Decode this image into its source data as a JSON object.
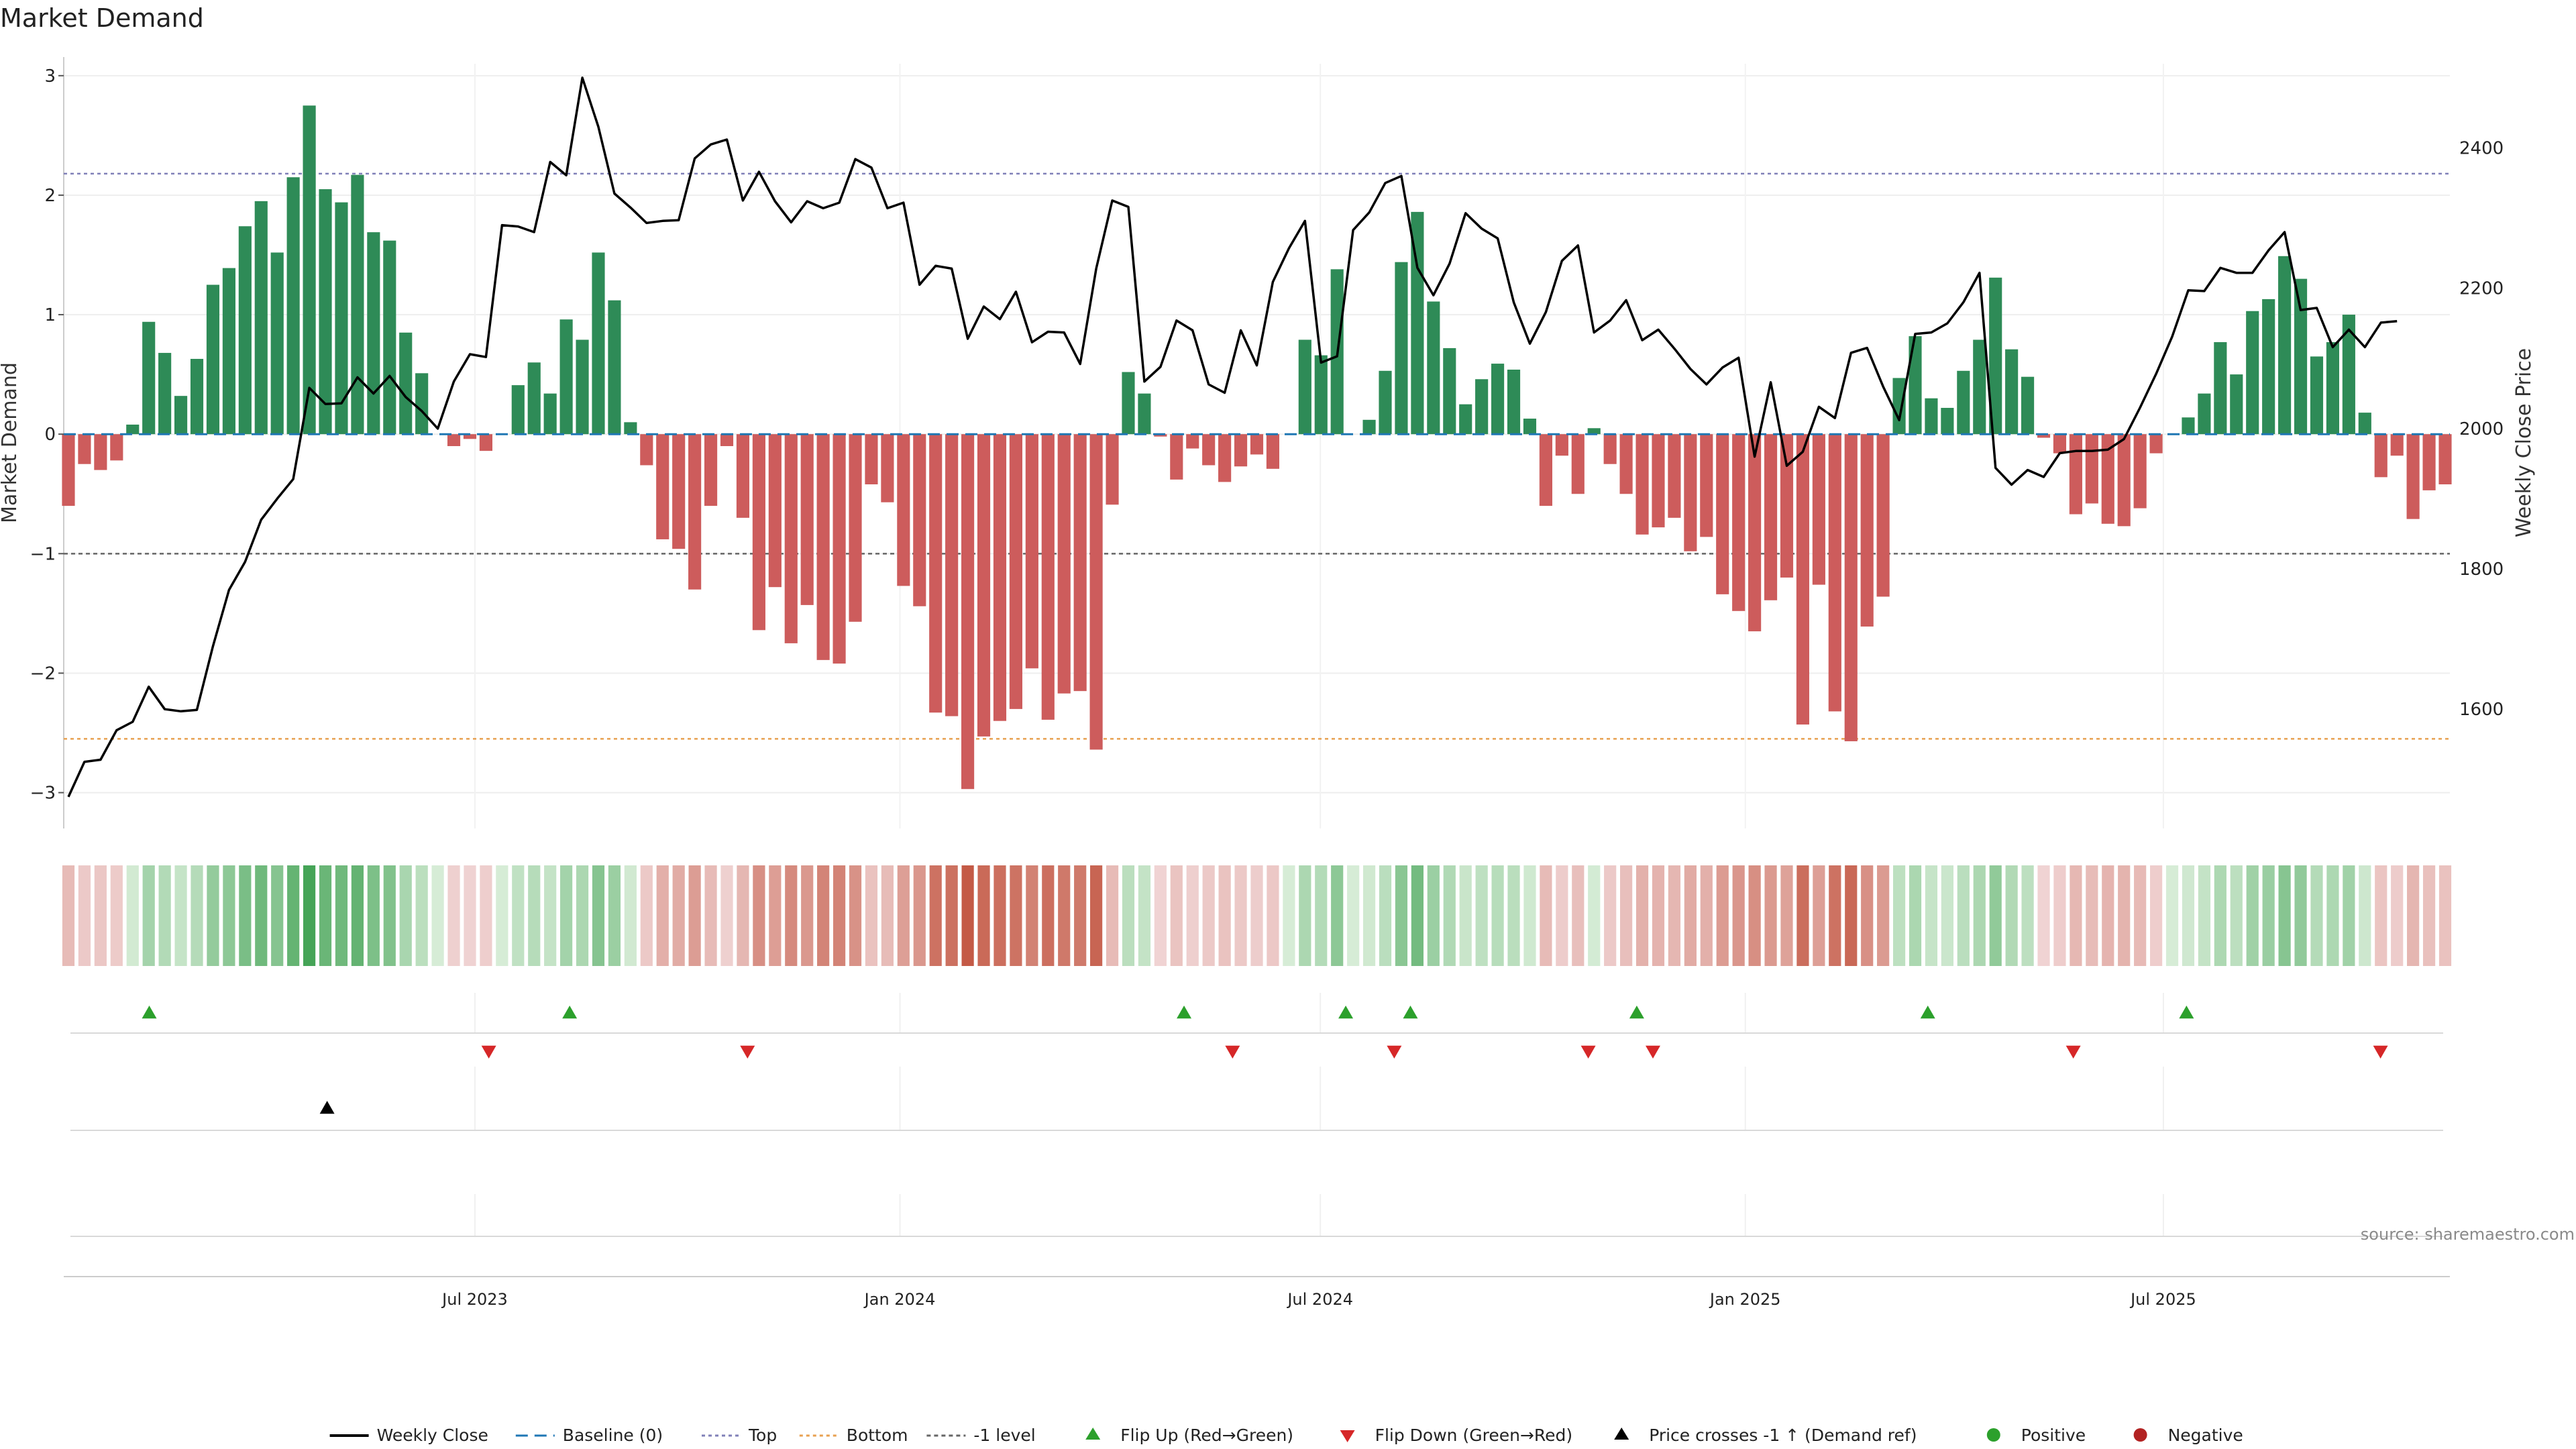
{
  "chart_data": {
    "type": "bar",
    "title": "Market Demand",
    "ylabel": "Market Demand",
    "y2label": "Weekly Close Price",
    "ylim": [
      -3.3,
      3.1
    ],
    "y_ticks": [
      3,
      2,
      1,
      0,
      -1,
      -2,
      -3
    ],
    "y_tick_labels": [
      "3",
      "2",
      "1",
      "0",
      "−1",
      "−2",
      "−3"
    ],
    "y2lim": [
      1430,
      2520
    ],
    "y2_ticks": [
      2400,
      2200,
      2000,
      1800,
      1600
    ],
    "x_start": "2023-01-06",
    "x_end": "2025-10-31",
    "x_ticks": [
      {
        "date": "2023-07-01",
        "label": "Jul 2023"
      },
      {
        "date": "2024-01-01",
        "label": "Jan 2024"
      },
      {
        "date": "2024-07-01",
        "label": "Jul 2024"
      },
      {
        "date": "2025-01-01",
        "label": "Jan 2025"
      },
      {
        "date": "2025-07-01",
        "label": "Jul 2025"
      }
    ],
    "reference_lines": {
      "top": 2.18,
      "bottom": -2.55,
      "minus_one": -1.0,
      "baseline": 0
    },
    "series": [
      {
        "name": "Market Demand",
        "values": [
          -0.6,
          -0.25,
          -0.3,
          -0.22,
          0.08,
          0.94,
          0.68,
          0.32,
          0.63,
          1.25,
          1.39,
          1.74,
          1.95,
          1.52,
          2.15,
          2.75,
          2.05,
          1.94,
          2.17,
          1.69,
          1.62,
          0.85,
          0.51,
          0,
          -0.1,
          -0.04,
          -0.14,
          0,
          0.41,
          0.6,
          0.34,
          0.96,
          0.79,
          1.52,
          1.12,
          0.1,
          -0.26,
          -0.88,
          -0.96,
          -1.3,
          -0.6,
          -0.1,
          -0.7,
          -1.64,
          -1.28,
          -1.75,
          -1.43,
          -1.89,
          -1.92,
          -1.57,
          -0.42,
          -0.57,
          -1.27,
          -1.44,
          -2.33,
          -2.36,
          -2.97,
          -2.53,
          -2.4,
          -2.3,
          -1.96,
          -2.39,
          -2.17,
          -2.15,
          -2.64,
          -0.59,
          0.52,
          0.34,
          -0.02,
          -0.38,
          -0.12,
          -0.26,
          -0.4,
          -0.27,
          -0.17,
          -0.29,
          0,
          0.79,
          0.66,
          1.38,
          0,
          0.12,
          0.53,
          1.44,
          1.86,
          1.11,
          0.72,
          0.25,
          0.46,
          0.59,
          0.54,
          0.13,
          -0.6,
          -0.18,
          -0.5,
          0.05,
          -0.25,
          -0.5,
          -0.84,
          -0.78,
          -0.7,
          -0.98,
          -0.86,
          -1.34,
          -1.48,
          -1.65,
          -1.39,
          -1.2,
          -2.43,
          -1.26,
          -2.32,
          -2.57,
          -1.61,
          -1.36,
          0.47,
          0.82,
          0.3,
          0.22,
          0.53,
          0.79,
          1.31,
          0.71,
          0.48,
          -0.03,
          -0.16,
          -0.67,
          -0.58,
          -0.75,
          -0.77,
          -0.62,
          -0.16,
          0,
          0.14,
          0.34,
          0.77,
          0.5,
          1.03,
          1.13,
          1.49,
          1.3,
          0.65,
          0.77,
          1.0,
          0.18,
          -0.36,
          -0.18,
          -0.71,
          -0.47,
          -0.42
        ]
      },
      {
        "name": "Weekly Close",
        "values": [
          1475,
          1525,
          1528,
          1570,
          1582,
          1632,
          1600,
          1597,
          1599,
          1690,
          1770,
          1810,
          1870,
          1900,
          1928,
          2058,
          2035,
          2036,
          2073,
          2050,
          2075,
          2045,
          2025,
          2000,
          2067,
          2106,
          2102,
          2290,
          2288,
          2280,
          2380,
          2361,
          2500,
          2430,
          2335,
          2315,
          2293,
          2296,
          2297,
          2385,
          2405,
          2412,
          2325,
          2366,
          2324,
          2294,
          2324,
          2314,
          2322,
          2384,
          2372,
          2314,
          2322,
          2205,
          2232,
          2228,
          2128,
          2174,
          2156,
          2195,
          2123,
          2138,
          2137,
          2092,
          2228,
          2325,
          2316,
          2067,
          2088,
          2154,
          2140,
          2063,
          2051,
          2140,
          2090,
          2209,
          2257,
          2296,
          2094,
          2103,
          2283,
          2308,
          2350,
          2360,
          2229,
          2190,
          2235,
          2307,
          2285,
          2271,
          2180,
          2121,
          2166,
          2239,
          2261,
          2137,
          2154,
          2183,
          2126,
          2141,
          2114,
          2085,
          2063,
          2087,
          2101,
          1960,
          2066,
          1947,
          1967,
          2031,
          2015,
          2108,
          2115,
          2060,
          2012,
          2135,
          2137,
          2150,
          2180,
          2222,
          1944,
          1920,
          1941,
          1931,
          1965,
          1968,
          1968,
          1970,
          1985,
          2030,
          2078,
          2131,
          2197,
          2196,
          2229,
          2222,
          2222,
          2254,
          2280,
          2169,
          2172,
          2116,
          2141,
          2116,
          2151,
          2153
        ]
      }
    ],
    "signals": {
      "flip_up": [
        "2023-02-10",
        "2023-08-11",
        "2024-05-03",
        "2024-07-12",
        "2024-08-09",
        "2024-11-15",
        "2025-03-21",
        "2025-07-11"
      ],
      "flip_down": [
        "2023-07-07",
        "2023-10-27",
        "2024-05-24",
        "2024-08-02",
        "2024-10-25",
        "2024-11-22",
        "2025-05-23",
        "2025-10-03"
      ],
      "price_cross_minus1": [
        "2023-04-28"
      ]
    },
    "legend": [
      "Weekly Close",
      "Baseline (0)",
      "Top",
      "Bottom",
      "-1 level",
      "Flip Up (Red→Green)",
      "Flip Down (Green→Red)",
      "Price crosses -1 ↑ (Demand ref)",
      "Positive",
      "Negative"
    ],
    "legend_placement": "bottom-center",
    "source": "source: sharemaestro.com",
    "colors": {
      "positive": "#2e8b57",
      "negative": "#cd5c5c",
      "price_line": "#000000",
      "baseline": "#1f77b4",
      "top": "#8080b8",
      "bottom": "#e8a050",
      "minus_one": "#666666",
      "flip_up": "#2ca02c",
      "flip_down": "#d62728",
      "price_cross": "#000000",
      "positive_dot": "#2ca02c",
      "negative_dot": "#b22222"
    }
  }
}
